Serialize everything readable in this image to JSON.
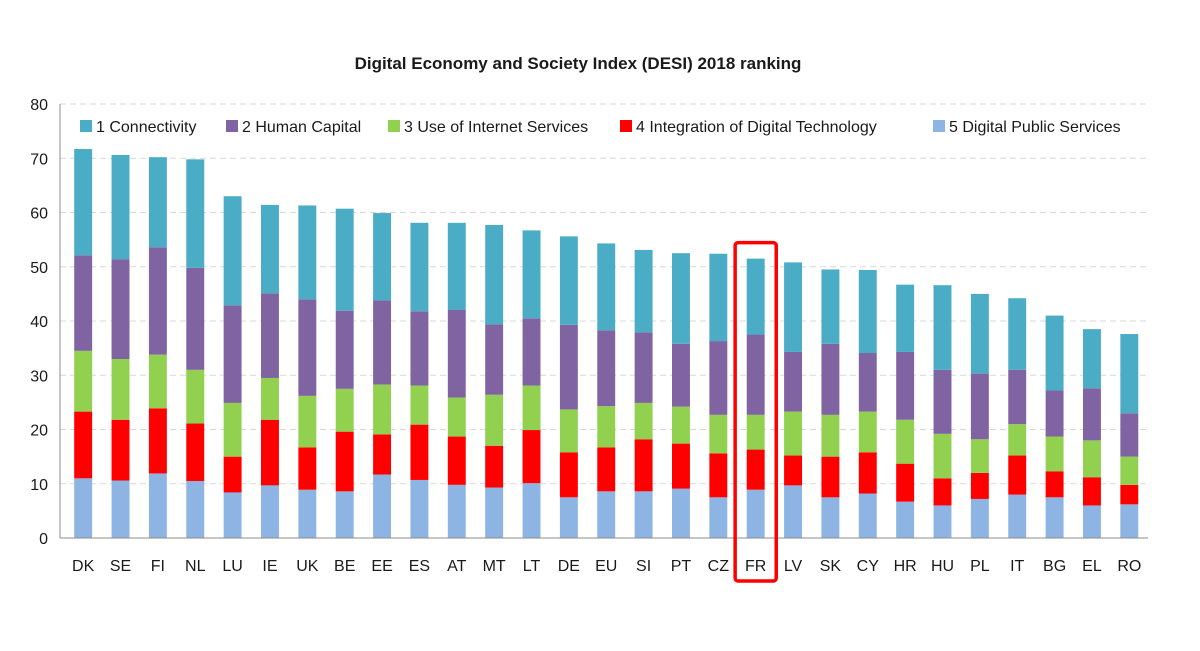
{
  "chart_data": {
    "type": "bar",
    "stacked": true,
    "title": "Digital Economy and Society Index (DESI) 2018 ranking",
    "xlabel": "",
    "ylabel": "",
    "ylim": [
      0,
      80
    ],
    "yticks": [
      0,
      10,
      20,
      30,
      40,
      50,
      60,
      70,
      80
    ],
    "grid": true,
    "legend_position": "top",
    "highlight_category": "FR",
    "categories": [
      "DK",
      "SE",
      "FI",
      "NL",
      "LU",
      "IE",
      "UK",
      "BE",
      "EE",
      "ES",
      "AT",
      "MT",
      "LT",
      "DE",
      "EU",
      "SI",
      "PT",
      "CZ",
      "FR",
      "LV",
      "SK",
      "CY",
      "HR",
      "HU",
      "PL",
      "IT",
      "BG",
      "EL",
      "RO"
    ],
    "series": [
      {
        "name": "5 Digital Public Services",
        "color": "#8db4e2",
        "values": [
          11.0,
          10.6,
          11.9,
          10.5,
          8.4,
          9.7,
          8.9,
          8.6,
          11.7,
          10.7,
          9.8,
          9.3,
          10.1,
          7.5,
          8.6,
          8.6,
          9.1,
          7.5,
          8.9,
          9.7,
          7.5,
          8.2,
          6.7,
          6.0,
          7.2,
          8.0,
          7.5,
          6.0,
          6.2
        ]
      },
      {
        "name": "4 Integration of Digital Technology",
        "color": "#ff0000",
        "values": [
          12.3,
          11.2,
          12.0,
          10.6,
          6.6,
          12.1,
          7.8,
          11.0,
          7.4,
          10.2,
          8.9,
          7.7,
          9.8,
          8.3,
          8.1,
          9.6,
          8.3,
          8.1,
          7.4,
          5.5,
          7.5,
          7.6,
          7.0,
          5.0,
          4.8,
          7.2,
          4.8,
          5.2,
          3.6
        ]
      },
      {
        "name": "3 Use of Internet Services",
        "color": "#92d050",
        "values": [
          11.2,
          11.2,
          9.9,
          9.9,
          9.9,
          7.7,
          9.5,
          7.9,
          9.2,
          7.2,
          7.2,
          9.4,
          8.2,
          7.9,
          7.6,
          6.7,
          6.8,
          7.1,
          6.4,
          8.1,
          7.7,
          7.5,
          8.1,
          8.2,
          6.2,
          5.8,
          6.4,
          6.8,
          5.2
        ]
      },
      {
        "name": "2 Human Capital",
        "color": "#8064a2",
        "values": [
          17.6,
          18.4,
          19.8,
          18.8,
          18.0,
          15.6,
          17.8,
          14.4,
          15.5,
          13.7,
          16.2,
          13.0,
          12.4,
          15.6,
          14.0,
          13.0,
          11.6,
          13.6,
          14.8,
          11.0,
          13.1,
          10.8,
          12.5,
          11.8,
          12.1,
          10.0,
          8.5,
          9.6,
          8.0
        ]
      },
      {
        "name": "1 Connectivity",
        "color": "#4bacc6",
        "values": [
          19.6,
          19.2,
          16.6,
          20.0,
          20.1,
          16.3,
          17.3,
          18.8,
          16.1,
          16.3,
          16.0,
          18.3,
          16.2,
          16.3,
          16.0,
          15.2,
          16.7,
          16.1,
          14.0,
          16.5,
          13.7,
          15.3,
          12.4,
          15.6,
          14.7,
          13.2,
          13.8,
          10.9,
          14.6
        ]
      }
    ],
    "totals": [
      71.7,
      70.6,
      70.2,
      69.8,
      63.0,
      61.4,
      61.3,
      60.7,
      59.9,
      58.1,
      58.1,
      57.7,
      56.7,
      55.6,
      54.3,
      53.1,
      52.5,
      52.4,
      51.5,
      50.8,
      49.5,
      49.4,
      46.7,
      46.6,
      45.0,
      44.2,
      41.0,
      38.5,
      37.6
    ],
    "legend_order": [
      "1 Connectivity",
      "2 Human Capital",
      "3 Use of Internet Services",
      "4 Integration of Digital Technology",
      "5 Digital Public Services"
    ]
  }
}
